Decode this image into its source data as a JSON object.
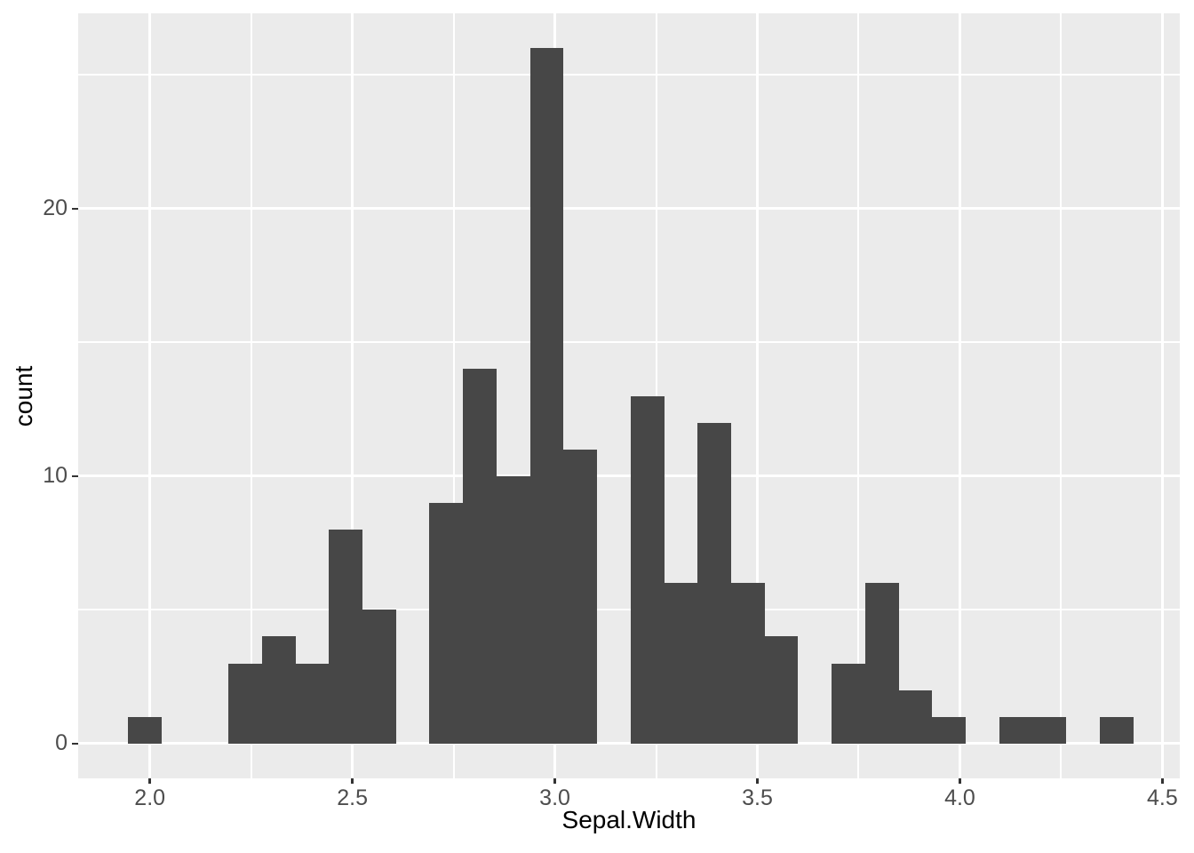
{
  "figure": {
    "background": "#FFFFFF"
  },
  "chart_data": {
    "type": "bar",
    "subtype": "histogram",
    "title": "",
    "xlabel": "Sepal.Width",
    "ylabel": "count",
    "legend": "none",
    "grid": "on",
    "panel_background": "#EBEBEB",
    "xlim": [
      1.823,
      4.543
    ],
    "ylim": [
      -1.3,
      27.3
    ],
    "x_ticks": [
      2.0,
      2.5,
      3.0,
      3.5,
      4.0,
      4.5
    ],
    "x_tick_labels": [
      "2.0",
      "2.5",
      "3.0",
      "3.5",
      "4.0",
      "4.5"
    ],
    "y_ticks": [
      0,
      10,
      20
    ],
    "y_tick_labels": [
      "0",
      "10",
      "20"
    ],
    "x_minor_ticks": [
      2.25,
      2.75,
      3.25,
      3.75,
      4.25
    ],
    "y_minor_ticks": [
      5,
      15,
      25
    ],
    "binwidth": 0.08276,
    "bins": [
      {
        "center": 1.987,
        "count": 1
      },
      {
        "center": 2.2353,
        "count": 3
      },
      {
        "center": 2.318,
        "count": 4
      },
      {
        "center": 2.4008,
        "count": 3
      },
      {
        "center": 2.4836,
        "count": 8
      },
      {
        "center": 2.5663,
        "count": 5
      },
      {
        "center": 2.7318,
        "count": 9
      },
      {
        "center": 2.8146,
        "count": 14
      },
      {
        "center": 2.8974,
        "count": 10
      },
      {
        "center": 2.9801,
        "count": 26
      },
      {
        "center": 3.0629,
        "count": 11
      },
      {
        "center": 3.2284,
        "count": 13
      },
      {
        "center": 3.3112,
        "count": 6
      },
      {
        "center": 3.3939,
        "count": 12
      },
      {
        "center": 3.4767,
        "count": 6
      },
      {
        "center": 3.5595,
        "count": 4
      },
      {
        "center": 3.725,
        "count": 3
      },
      {
        "center": 3.8077,
        "count": 6
      },
      {
        "center": 3.8905,
        "count": 2
      },
      {
        "center": 3.9733,
        "count": 1
      },
      {
        "center": 4.1388,
        "count": 1
      },
      {
        "center": 4.2216,
        "count": 1
      },
      {
        "center": 4.387,
        "count": 1
      }
    ],
    "colors": {
      "bar_fill": "#474747",
      "panel_background": "#EBEBEB",
      "grid_major": "#FFFFFF",
      "grid_minor": "#FFFFFF",
      "tick_label": "#4D4D4D",
      "axis_title": "#000000",
      "tick_mark": "#333333",
      "figure_background": "#FFFFFF"
    }
  }
}
